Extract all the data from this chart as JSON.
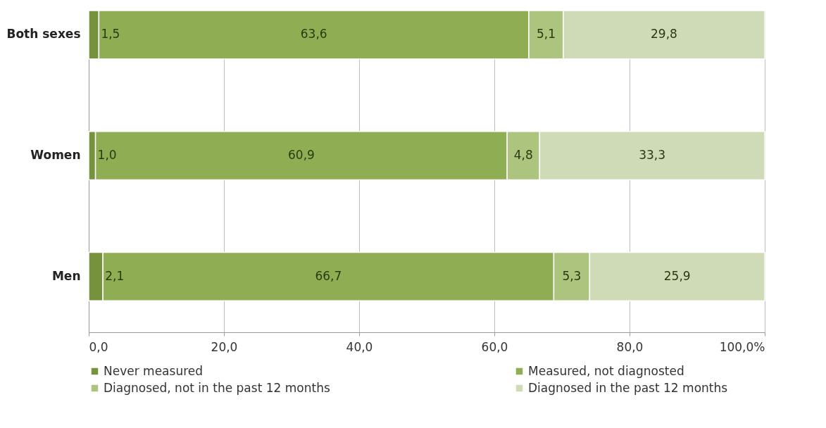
{
  "chart_data": {
    "type": "bar",
    "orientation": "horizontal",
    "stacked": true,
    "categories": [
      "Both sexes",
      "Women",
      "Men"
    ],
    "series": [
      {
        "name": "Never measured",
        "color": "#76923c",
        "values": [
          1.5,
          1.0,
          2.1
        ],
        "value_labels": [
          "1,5",
          "1,0",
          "2,1"
        ]
      },
      {
        "name": "Measured,  not diagnosted",
        "color": "#8fae54",
        "values": [
          63.6,
          60.9,
          66.7
        ],
        "value_labels": [
          "63,6",
          "60,9",
          "66,7"
        ]
      },
      {
        "name": "Diagnosed, not in the past 12 months",
        "color": "#adc47e",
        "values": [
          5.1,
          4.8,
          5.3
        ],
        "value_labels": [
          "5,1",
          "4,8",
          "5,3"
        ]
      },
      {
        "name": "Diagnosed in the past 12 months",
        "color": "#cfdbb6",
        "values": [
          29.8,
          33.3,
          25.9
        ],
        "value_labels": [
          "29,8",
          "33,3",
          "25,9"
        ]
      }
    ],
    "xlim": [
      0,
      100
    ],
    "xticks": [
      {
        "value": 0,
        "label": "0,0"
      },
      {
        "value": 20,
        "label": "20,0"
      },
      {
        "value": 40,
        "label": "40,0"
      },
      {
        "value": 60,
        "label": "60,0"
      },
      {
        "value": 80,
        "label": "80,0"
      },
      {
        "value": 100,
        "label": "100,0%"
      }
    ],
    "grid": "x",
    "legend": "bottom"
  }
}
